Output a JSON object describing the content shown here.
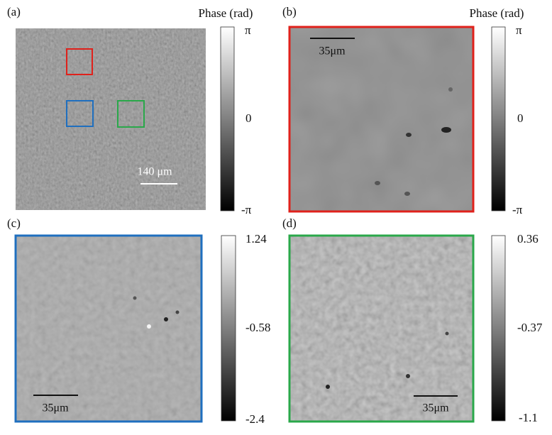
{
  "panels": [
    {
      "label": "(a)",
      "colorbar": {
        "title": "Phase (rad)",
        "ticks": [
          "π",
          "0",
          "-π"
        ]
      },
      "scale_bar": "140 μm"
    },
    {
      "label": "(b)",
      "colorbar": {
        "title": "Phase (rad)",
        "ticks": [
          "π",
          "0",
          "-π"
        ]
      },
      "scale_bar": "35μm"
    },
    {
      "label": "(c)",
      "colorbar": {
        "ticks": [
          "1.24",
          "-0.58",
          "-2.4"
        ]
      },
      "scale_bar": "35μm"
    },
    {
      "label": "(d)",
      "colorbar": {
        "ticks": [
          "0.36",
          "-0.37",
          "-1.1"
        ]
      },
      "scale_bar": "35μm"
    }
  ]
}
